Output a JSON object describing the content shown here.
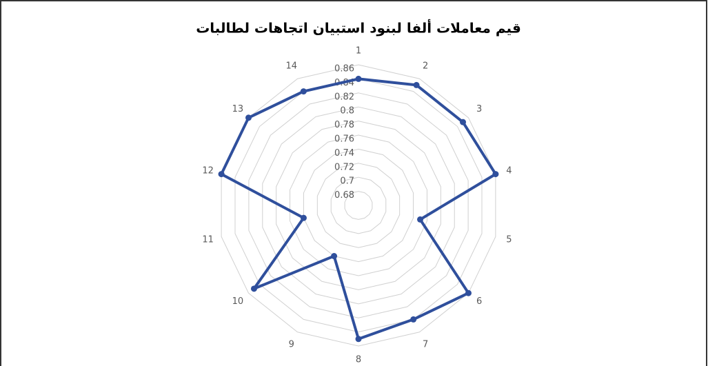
{
  "chart_data": {
    "type": "radar",
    "title": "قيم معاملات ألفا لبنود استبيان اتجاهات لطالبات",
    "categories": [
      "1",
      "2",
      "3",
      "4",
      "5",
      "6",
      "7",
      "8",
      "9",
      "10",
      "11",
      "12",
      "13",
      "14"
    ],
    "values": [
      0.84,
      0.85,
      0.85,
      0.86,
      0.75,
      0.86,
      0.84,
      0.85,
      0.74,
      0.85,
      0.74,
      0.86,
      0.86,
      0.84
    ],
    "color": "#2f4f9c",
    "ylim": [
      0.66,
      0.86
    ],
    "yticks": [
      0.68,
      0.7,
      0.72,
      0.74,
      0.76,
      0.78,
      0.8,
      0.82,
      0.84,
      0.86
    ],
    "grid": true
  }
}
